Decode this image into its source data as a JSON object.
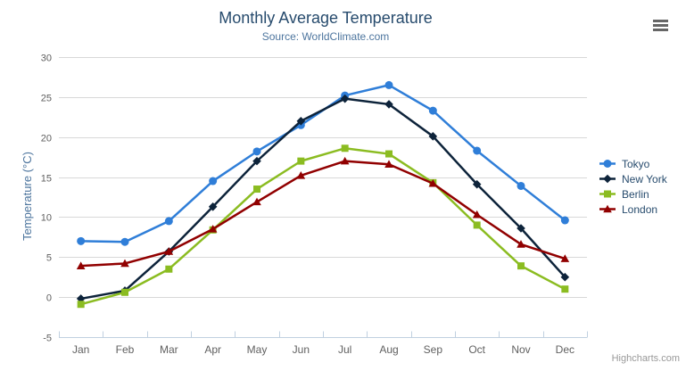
{
  "credits": "Highcharts.com",
  "icons": {
    "menu": "hamburger-icon"
  },
  "palette": {
    "title_color": "#274b6d",
    "subtitle_color": "#4d759e",
    "axis_label_color": "#606060",
    "axis_line_color": "#c0d0e0",
    "grid_color": "#d8d8d8",
    "legend_text_color": "#274b6d",
    "credits_color": "#999999",
    "menu_icon_color": "#666666"
  },
  "chart_data": {
    "type": "line",
    "title": "Monthly Average Temperature",
    "subtitle": "Source: WorldClimate.com",
    "categories": [
      "Jan",
      "Feb",
      "Mar",
      "Apr",
      "May",
      "Jun",
      "Jul",
      "Aug",
      "Sep",
      "Oct",
      "Nov",
      "Dec"
    ],
    "xlabel": "",
    "ylabel": "Temperature (°C)",
    "ylim": [
      -5,
      30
    ],
    "ytick_step": 5,
    "ytick_labels": [
      "-5",
      "0",
      "5",
      "10",
      "15",
      "20",
      "25",
      "30"
    ],
    "grid": true,
    "legend_position": "right",
    "series": [
      {
        "name": "Tokyo",
        "color": "#2f7ed8",
        "marker": "circle",
        "values": [
          7.0,
          6.9,
          9.5,
          14.5,
          18.2,
          21.5,
          25.2,
          26.5,
          23.3,
          18.3,
          13.9,
          9.6
        ]
      },
      {
        "name": "New York",
        "color": "#0d233a",
        "marker": "diamond",
        "values": [
          -0.2,
          0.8,
          5.7,
          11.3,
          17.0,
          22.0,
          24.8,
          24.1,
          20.1,
          14.1,
          8.6,
          2.5
        ]
      },
      {
        "name": "Berlin",
        "color": "#8bbc21",
        "marker": "square",
        "values": [
          -0.9,
          0.6,
          3.5,
          8.4,
          13.5,
          17.0,
          18.6,
          17.9,
          14.3,
          9.0,
          3.9,
          1.0
        ]
      },
      {
        "name": "London",
        "color": "#910000",
        "marker": "triangle",
        "values": [
          3.9,
          4.2,
          5.7,
          8.5,
          11.9,
          15.2,
          17.0,
          16.6,
          14.2,
          10.3,
          6.6,
          4.8
        ]
      }
    ]
  }
}
